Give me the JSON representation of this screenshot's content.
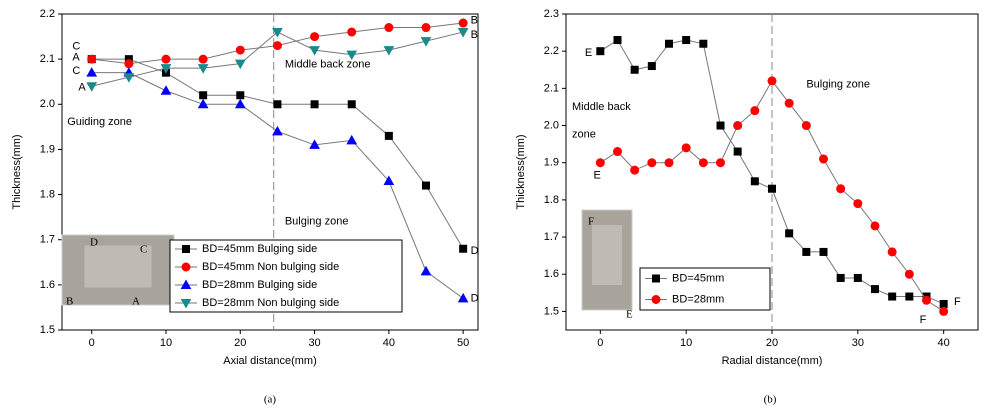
{
  "chart_data": [
    {
      "type": "line",
      "x_label": "Axial distance(mm)",
      "y_label": "Thickness(mm)",
      "caption": "(a)",
      "x": [
        0,
        5,
        10,
        15,
        20,
        25,
        30,
        35,
        40,
        45,
        50
      ],
      "series": [
        {
          "name": "BD=45mm Bulging side",
          "color": "#000000",
          "marker": "square",
          "values": [
            2.1,
            2.1,
            2.07,
            2.02,
            2.02,
            2.0,
            2.0,
            2.0,
            1.93,
            1.82,
            1.68
          ]
        },
        {
          "name": "BD=45mm Non bulging side",
          "color": "#ff0000",
          "marker": "circle",
          "values": [
            2.1,
            2.09,
            2.1,
            2.1,
            2.12,
            2.13,
            2.15,
            2.16,
            2.17,
            2.17,
            2.18
          ]
        },
        {
          "name": "BD=28mm Bulging side",
          "color": "#0000ff",
          "marker": "triangle-up",
          "values": [
            2.07,
            2.07,
            2.03,
            2.0,
            2.0,
            1.94,
            1.91,
            1.92,
            1.83,
            1.63,
            1.57
          ]
        },
        {
          "name": "BD=28mm Non bulging side",
          "color": "#1a8a8a",
          "marker": "triangle-down",
          "values": [
            2.04,
            2.06,
            2.08,
            2.08,
            2.09,
            2.16,
            2.12,
            2.11,
            2.12,
            2.14,
            2.16
          ]
        }
      ],
      "xlim": [
        -4,
        52
      ],
      "xticks": [
        0,
        10,
        20,
        30,
        40,
        50
      ],
      "ylim": [
        1.5,
        2.2
      ],
      "yticks": [
        1.5,
        1.6,
        1.7,
        1.8,
        1.9,
        {
          "value": 2.0,
          "label": "2.0"
        },
        2.1,
        2.2
      ],
      "divider_x": 24.5,
      "legend": "lower center",
      "annotations": [
        "C",
        "A",
        "C",
        "A",
        "B",
        "B",
        "D",
        "D",
        "Guiding zone",
        "Middle back zone",
        "Bulging zone"
      ],
      "inset_labels": [
        "D",
        "C",
        "B",
        "A"
      ]
    },
    {
      "type": "line",
      "x_label": "Radial distance(mm)",
      "y_label": "Thickness(mm)",
      "caption": "(b)",
      "x": [
        0,
        2,
        4,
        6,
        8,
        10,
        12,
        14,
        16,
        18,
        20,
        22,
        24,
        26,
        28,
        30,
        32,
        34,
        36,
        38,
        40
      ],
      "series": [
        {
          "name": "BD=45mm",
          "color": "#000000",
          "marker": "square",
          "values": [
            2.2,
            2.23,
            2.15,
            2.16,
            2.22,
            2.23,
            2.22,
            2.0,
            1.93,
            1.85,
            1.83,
            1.71,
            1.66,
            1.66,
            1.59,
            1.59,
            1.56,
            1.54,
            1.54,
            1.54,
            1.52
          ]
        },
        {
          "name": "BD=28mm",
          "color": "#ff0000",
          "marker": "circle",
          "values": [
            1.9,
            1.93,
            1.88,
            1.9,
            1.9,
            1.94,
            1.9,
            1.9,
            2.0,
            2.04,
            2.12,
            2.06,
            2.0,
            1.91,
            1.83,
            1.79,
            1.73,
            1.66,
            1.6,
            1.53,
            1.5
          ]
        }
      ],
      "xlim": [
        -4,
        44
      ],
      "xticks": [
        0,
        10,
        20,
        30,
        40
      ],
      "ylim": [
        1.45,
        2.3
      ],
      "yticks": [
        1.5,
        1.6,
        1.7,
        1.8,
        1.9,
        {
          "value": 2.0,
          "label": "2.0"
        },
        2.1,
        2.2,
        2.3
      ],
      "divider_x": 20,
      "legend": "lower left",
      "annotations": [
        "E",
        "E",
        "F",
        "F",
        "Middle back",
        "zone",
        "Bulging zone"
      ],
      "inset_labels": [
        "F",
        "E"
      ]
    }
  ]
}
